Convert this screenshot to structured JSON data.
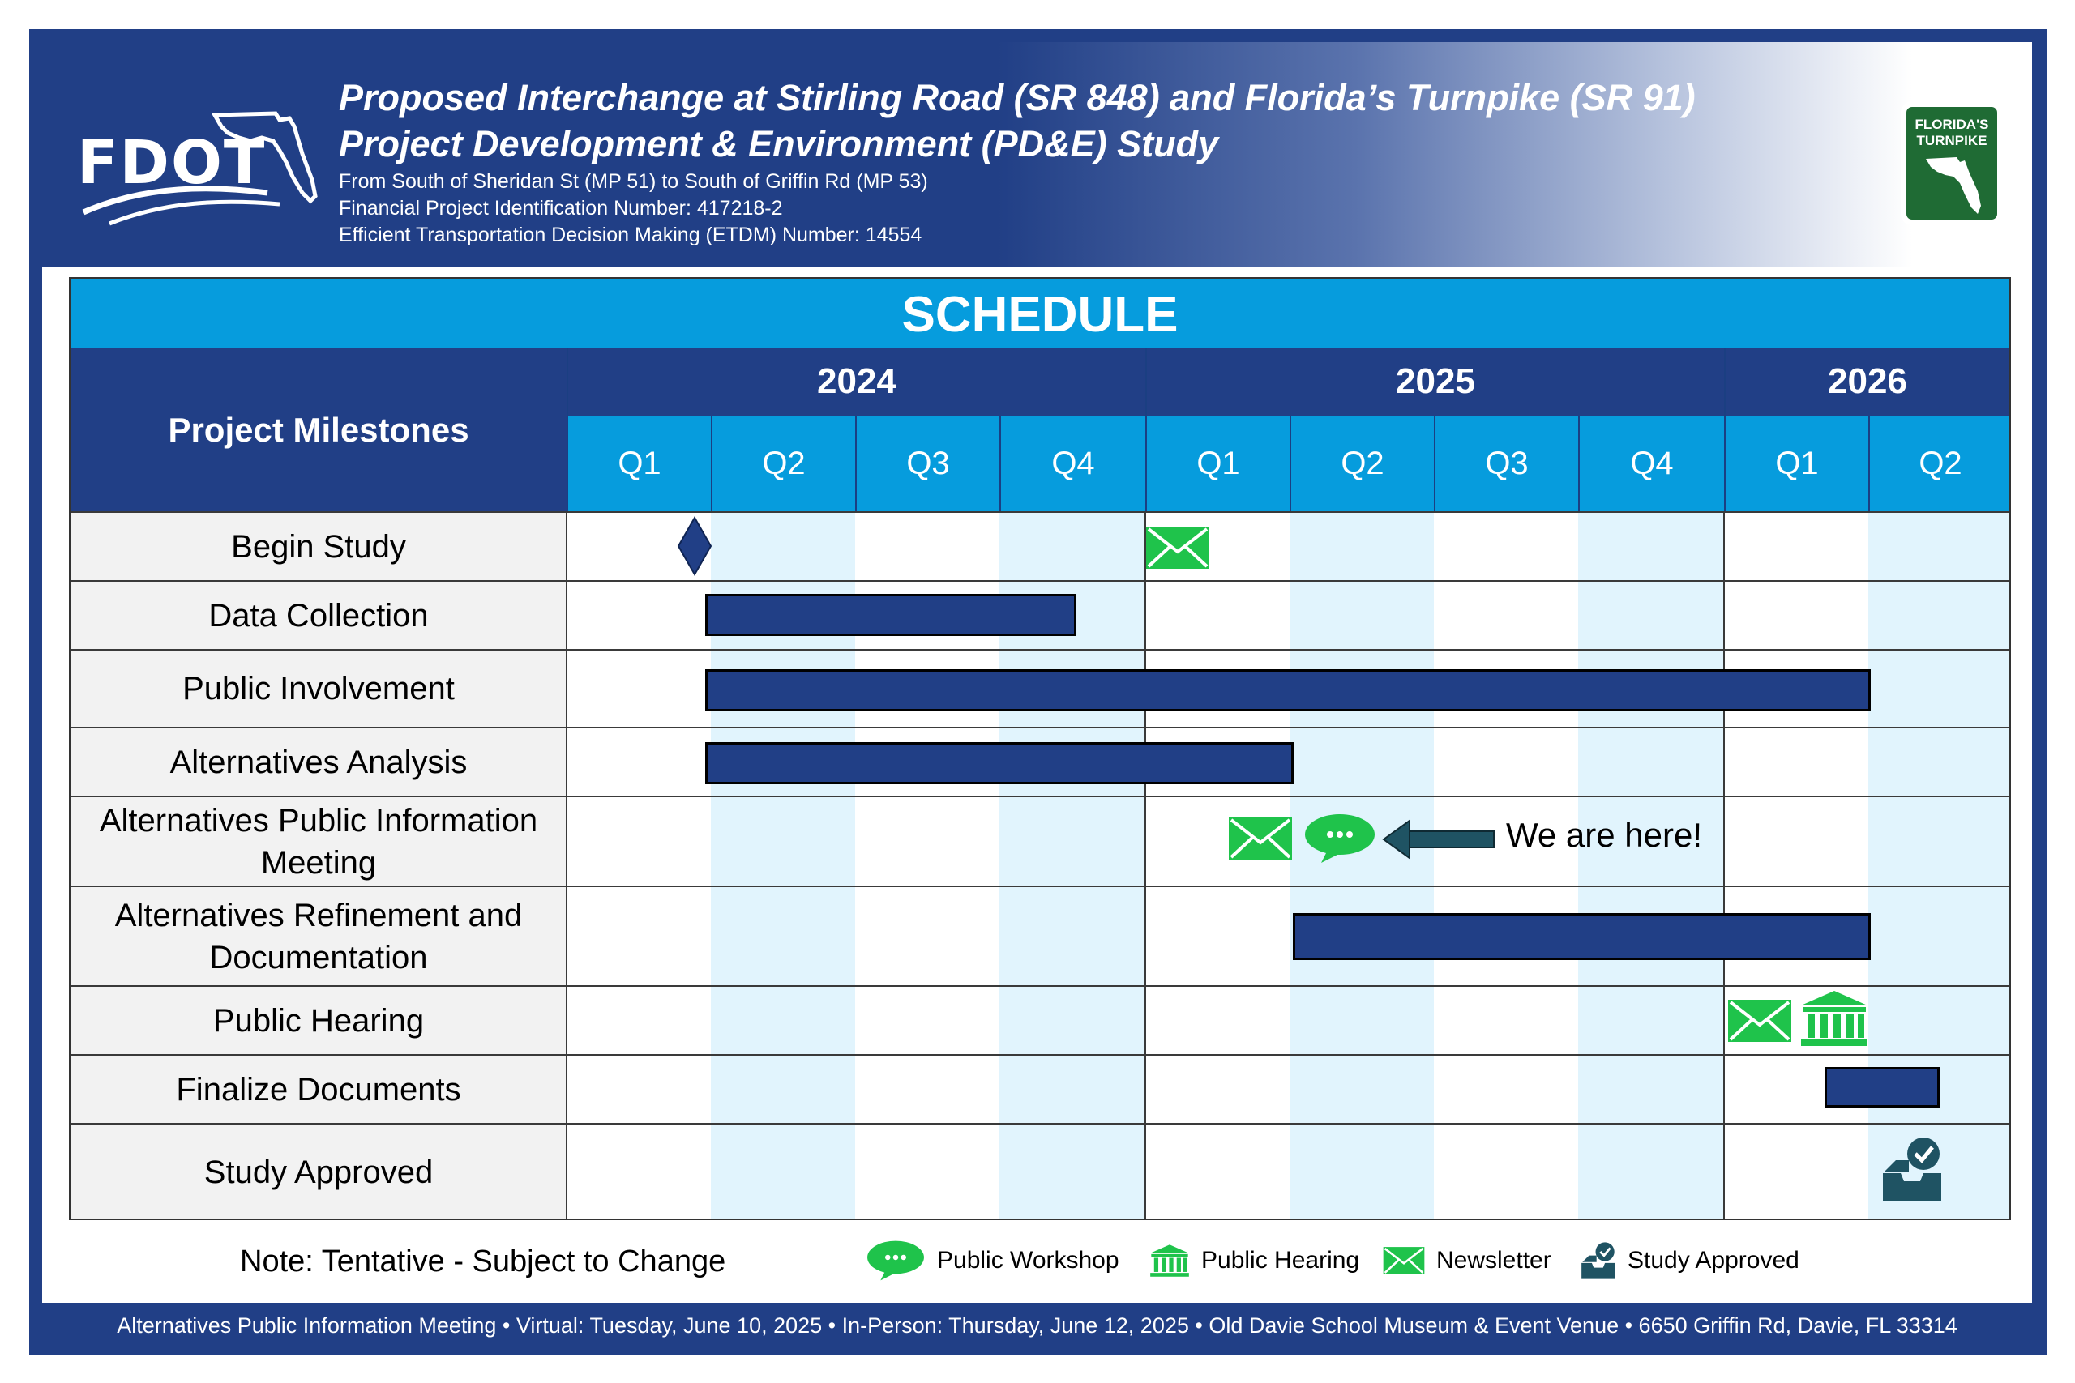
{
  "header": {
    "title_line1": "Proposed Interchange at Stirling Road (SR 848) and Florida’s Turnpike (SR 91)",
    "title_line2": "Project Development & Environment (PD&E) Study",
    "sub_line1": "From South of Sheridan St (MP 51) to South of Griffin Rd (MP 53)",
    "sub_line2": "Financial Project Identification Number:  417218-2",
    "sub_line3": "Efficient Transportation Decision Making (ETDM) Number: 14554",
    "fdot_wordmark": "FDOT",
    "turnpike_logo_text": "FLORIDA'S TURNPIKE"
  },
  "schedule": {
    "title": "SCHEDULE",
    "milestones_header": "Project Milestones",
    "years": [
      "2024",
      "2025",
      "2026"
    ],
    "quarters": [
      "Q1",
      "Q2",
      "Q3",
      "Q4",
      "Q1",
      "Q2",
      "Q3",
      "Q4",
      "Q1",
      "Q2"
    ],
    "rows": [
      "Begin Study",
      "Data Collection",
      "Public Involvement",
      "Alternatives Analysis",
      "Alternatives Public Information Meeting",
      "Alternatives Refinement and Documentation",
      "Public Hearing",
      "Finalize Documents",
      "Study Approved"
    ],
    "we_are_here": "We are here!"
  },
  "chart_data": {
    "type": "gantt",
    "periods": [
      "2024 Q1",
      "2024 Q2",
      "2024 Q3",
      "2024 Q4",
      "2025 Q1",
      "2025 Q2",
      "2025 Q3",
      "2025 Q4",
      "2026 Q1",
      "2026 Q2"
    ],
    "tasks": [
      {
        "name": "Begin Study",
        "milestone": "diamond",
        "at": "2024 Q1 end",
        "icons": [
          {
            "type": "newsletter",
            "at": "2025 Q1 start"
          }
        ]
      },
      {
        "name": "Data Collection",
        "start": "2024 Q2",
        "end": "2024 Q4"
      },
      {
        "name": "Public Involvement",
        "start": "2024 Q2",
        "end": "2026 Q2"
      },
      {
        "name": "Alternatives Analysis",
        "start": "2024 Q2",
        "end": "2025 Q1"
      },
      {
        "name": "Alternatives Public Information Meeting",
        "icons": [
          {
            "type": "newsletter",
            "at": "2025 Q1"
          },
          {
            "type": "public-workshop",
            "at": "2025 Q2"
          }
        ]
      },
      {
        "name": "Alternatives Refinement and Documentation",
        "start": "2025 Q2",
        "end": "2026 Q2"
      },
      {
        "name": "Public Hearing",
        "icons": [
          {
            "type": "newsletter",
            "at": "2026 Q1"
          },
          {
            "type": "public-hearing",
            "at": "2026 Q1"
          }
        ]
      },
      {
        "name": "Finalize Documents",
        "start": "2026 Q1",
        "end": "2026 Q2"
      },
      {
        "name": "Study Approved",
        "icons": [
          {
            "type": "study-approved",
            "at": "2026 Q2"
          }
        ]
      }
    ],
    "colors": {
      "bar": "#213f86",
      "header": "#213f86",
      "accent": "#069cdd",
      "icon": "#1fc34b",
      "shade": "#e1f4fd"
    }
  },
  "legend": {
    "note": "Note:  Tentative - Subject to Change",
    "items": [
      {
        "icon": "public-workshop-icon",
        "label": "Public Workshop"
      },
      {
        "icon": "public-hearing-icon",
        "label": "Public Hearing"
      },
      {
        "icon": "newsletter-icon",
        "label": "Newsletter"
      },
      {
        "icon": "study-approved-icon",
        "label": "Study Approved"
      }
    ]
  },
  "footer": {
    "text": "Alternatives Public Information Meeting  • Virtual: Tuesday, June 10, 2025 • In-Person: Thursday, June 12, 2025 • Old Davie School Museum & Event Venue • 6650 Griffin Rd, Davie, FL  33314"
  }
}
